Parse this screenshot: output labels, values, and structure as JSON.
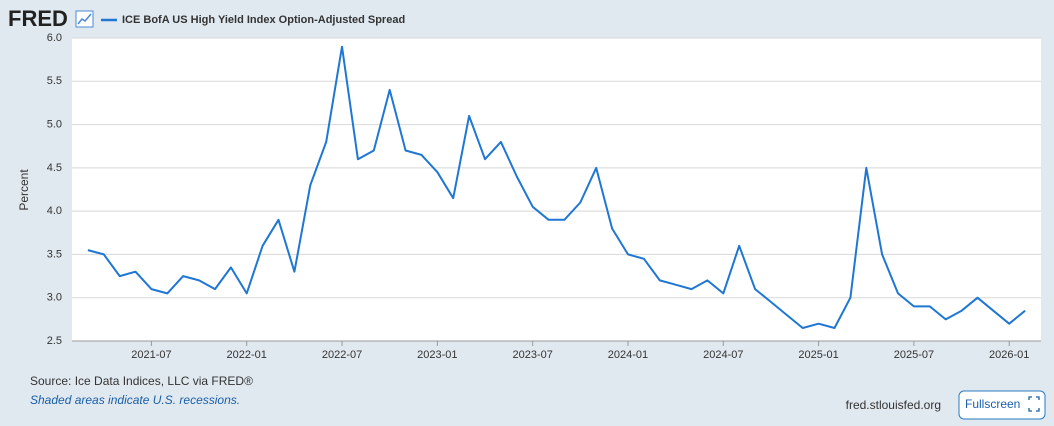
{
  "logo": "FRED",
  "chart_data": {
    "type": "line",
    "y_label": "Percent",
    "x": [
      "2021-03",
      "2021-04",
      "2021-05",
      "2021-06",
      "2021-07",
      "2021-08",
      "2021-09",
      "2021-10",
      "2021-11",
      "2021-12",
      "2022-01",
      "2022-02",
      "2022-03",
      "2022-04",
      "2022-05",
      "2022-06",
      "2022-07",
      "2022-08",
      "2022-09",
      "2022-10",
      "2022-11",
      "2022-12",
      "2023-01",
      "2023-02",
      "2023-03",
      "2023-04",
      "2023-05",
      "2023-06",
      "2023-07",
      "2023-08",
      "2023-09",
      "2023-10",
      "2023-11",
      "2023-12",
      "2024-01",
      "2024-02",
      "2024-03",
      "2024-04",
      "2024-05",
      "2024-06",
      "2024-07",
      "2024-08",
      "2024-09",
      "2024-10",
      "2024-11",
      "2024-12",
      "2025-01",
      "2025-02",
      "2025-03",
      "2025-04",
      "2025-05",
      "2025-06",
      "2025-07",
      "2025-08",
      "2025-09",
      "2025-10",
      "2025-11",
      "2025-12",
      "2026-01",
      "2026-02"
    ],
    "series": [
      {
        "name": "ICE BofA US High Yield Index Option-Adjusted Spread",
        "color": "#1f77d4",
        "values": [
          3.55,
          3.5,
          3.25,
          3.3,
          3.1,
          3.05,
          3.25,
          3.2,
          3.1,
          3.35,
          3.05,
          3.6,
          3.9,
          3.3,
          4.3,
          4.8,
          5.9,
          4.6,
          4.7,
          5.4,
          4.7,
          4.65,
          4.45,
          4.15,
          5.1,
          4.6,
          4.8,
          4.4,
          4.05,
          3.9,
          3.9,
          4.1,
          4.5,
          3.8,
          3.5,
          3.45,
          3.2,
          3.15,
          3.1,
          3.2,
          3.05,
          3.6,
          3.1,
          2.95,
          2.8,
          2.65,
          2.7,
          2.65,
          3.0,
          4.5,
          3.5,
          3.05,
          2.9,
          2.9,
          2.75,
          2.85,
          3.0,
          2.85,
          2.7,
          2.85
        ]
      }
    ],
    "xlim": [
      "2021-02",
      "2026-03"
    ],
    "xticks": [
      "2021-07",
      "2022-01",
      "2022-07",
      "2023-01",
      "2023-07",
      "2024-01",
      "2024-07",
      "2025-01",
      "2025-07",
      "2026-01"
    ],
    "ylim": [
      2.5,
      6.0
    ],
    "yticks": [
      2.5,
      {
        "value": 3,
        "label": "3.0"
      },
      3.5,
      {
        "value": 4,
        "label": "4.0"
      },
      4.5,
      {
        "value": 5,
        "label": "5.0"
      },
      5.5,
      {
        "value": 6,
        "label": "6.0"
      }
    ],
    "grid": true
  },
  "footer": {
    "source": "Source: Ice Data Indices, LLC via FRED®",
    "note": "Shaded areas indicate U.S. recessions.",
    "site": "fred.stlouisfed.org",
    "button": "Fullscreen"
  }
}
